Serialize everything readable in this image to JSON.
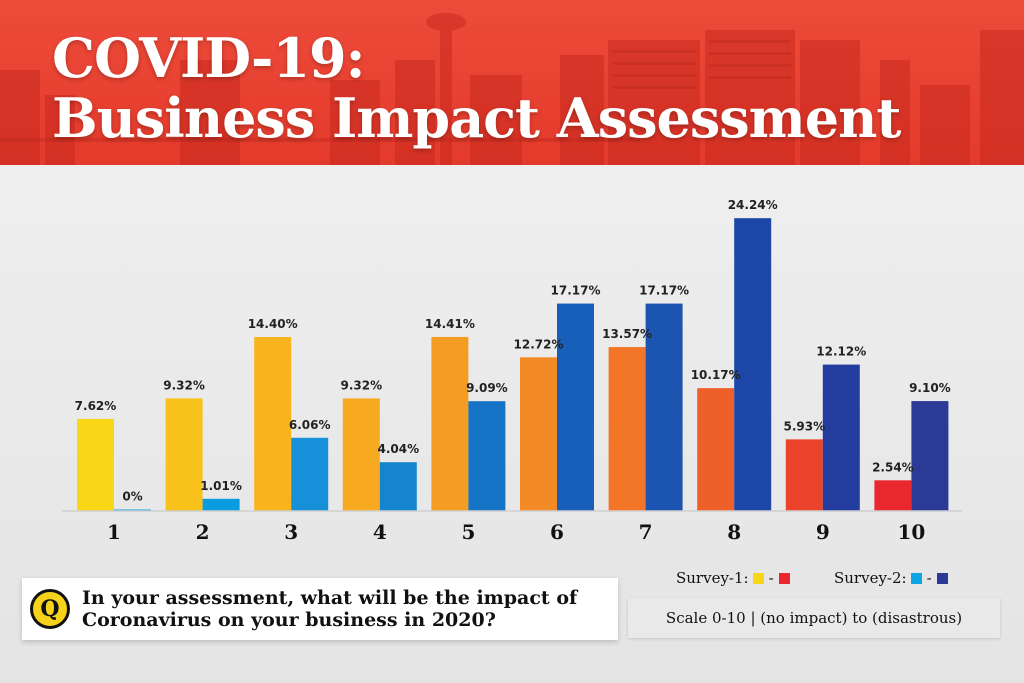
{
  "header": {
    "title_line1": "COVID-19:",
    "title_line2": "Business Impact Assessment"
  },
  "chart_data": {
    "type": "bar",
    "categories": [
      "1",
      "2",
      "3",
      "4",
      "5",
      "6",
      "7",
      "8",
      "9",
      "10"
    ],
    "series": [
      {
        "name": "Survey-1",
        "values": [
          7.62,
          9.32,
          14.4,
          9.32,
          14.41,
          12.72,
          13.57,
          10.17,
          5.93,
          2.54
        ],
        "labels": [
          "7.62%",
          "9.32%",
          "14.40%",
          "9.32%",
          "14.41%",
          "12.72%",
          "13.57%",
          "10.17%",
          "5.93%",
          "2.54%"
        ],
        "colors": [
          "#f9d616",
          "#f9c21b",
          "#f8b31d",
          "#f7aa1f",
          "#f59d22",
          "#f38a25",
          "#f27528",
          "#ef5f2a",
          "#ec432c",
          "#e8272e"
        ]
      },
      {
        "name": "Survey-2",
        "values": [
          0,
          1.01,
          6.06,
          4.04,
          9.09,
          17.17,
          17.17,
          24.24,
          12.12,
          9.1
        ],
        "labels": [
          "0%",
          "1.01%",
          "6.06%",
          "4.04%",
          "9.09%",
          "17.17%",
          "17.17%",
          "24.24%",
          "12.12%",
          "9.10%"
        ],
        "colors": [
          "#0ea5e4",
          "#0b9be0",
          "#1690d8",
          "#1585d0",
          "#1674c6",
          "#175fb9",
          "#1b55b1",
          "#1c47a8",
          "#223d9e",
          "#2a3a96"
        ]
      }
    ],
    "ylim": [
      0,
      25
    ],
    "grid": false,
    "legend_position": "bottom-right"
  },
  "legend": {
    "survey1_label": "Survey-1:",
    "survey2_label": "Survey-2:",
    "dash": "-",
    "survey1_colors": [
      "#f9d616",
      "#e8272e"
    ],
    "survey2_colors": [
      "#0ea5e4",
      "#2a3a96"
    ]
  },
  "question": {
    "badge": "Q",
    "line1": "In your assessment, what will be the impact of",
    "line2": "Coronavirus on your business in 2020?"
  },
  "scale_note": "Scale 0-10 | (no impact) to (disastrous)"
}
